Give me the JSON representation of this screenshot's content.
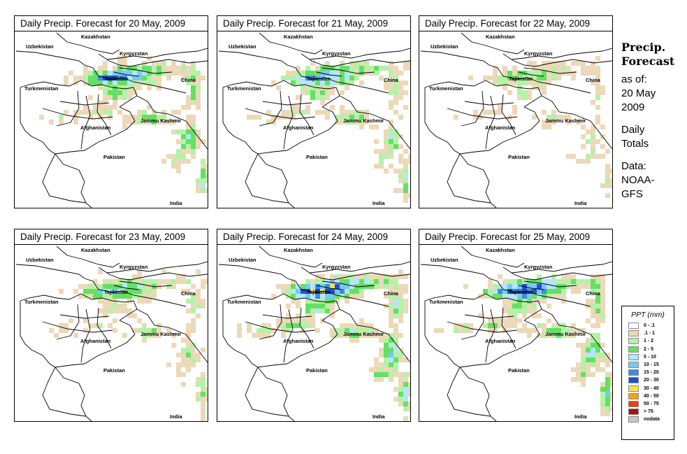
{
  "panels": [
    {
      "title": "Daily Precip. Forecast for  20 May, 2009",
      "intensity": 1.0
    },
    {
      "title": "Daily Precip. Forecast for  21 May, 2009",
      "intensity": 0.9
    },
    {
      "title": "Daily Precip. Forecast for  22 May, 2009",
      "intensity": 0.55
    },
    {
      "title": "Daily Precip. Forecast for  23 May, 2009",
      "intensity": 0.75
    },
    {
      "title": "Daily Precip. Forecast for  24 May, 2009",
      "intensity": 1.25
    },
    {
      "title": "Daily Precip. Forecast for  25 May, 2009",
      "intensity": 1.15
    }
  ],
  "map_labels": {
    "kazakhstan": "Kazakhstan",
    "uzbekistan": "Uzbekistan",
    "kyrgyzstan": "Kyrgyzstan",
    "tajikistan": "Tajikistan",
    "turkmenistan": "Turkmenistan",
    "china": "China",
    "afghanistan": "Afghanistan",
    "jammu_kashmir": "Jammu Kashmir",
    "pakistan": "Pakistan",
    "india": "India"
  },
  "side": {
    "title_line1": "Precip.",
    "title_line2": "Forecast",
    "asof_line1": "as of:",
    "asof_line2": "20 May",
    "asof_line3": "2009",
    "daily_line1": "Daily",
    "daily_line2": "Totals",
    "data_line1": "Data:",
    "data_line2": "NOAA-",
    "data_line3": "GFS"
  },
  "legend": {
    "title": "PPT (mm)",
    "items": [
      {
        "label": "0 - .1",
        "color": "#ffffff"
      },
      {
        "label": ".1 - 1",
        "color": "#ecd9b9"
      },
      {
        "label": "1 - 2",
        "color": "#b4f2a6"
      },
      {
        "label": "2 - 5",
        "color": "#64e064"
      },
      {
        "label": "5 - 10",
        "color": "#b4e6fa"
      },
      {
        "label": "10 - 15",
        "color": "#78c8fa"
      },
      {
        "label": "15 - 20",
        "color": "#3c8ce6"
      },
      {
        "label": "20 - 30",
        "color": "#1e50d2"
      },
      {
        "label": "30 - 40",
        "color": "#fae150"
      },
      {
        "label": "40 - 50",
        "color": "#faa014"
      },
      {
        "label": "50 - 75",
        "color": "#f03c0a"
      },
      {
        "label": "> 75",
        "color": "#a01414"
      },
      {
        "label": "nodata",
        "color": "#c8c8c8"
      }
    ]
  }
}
